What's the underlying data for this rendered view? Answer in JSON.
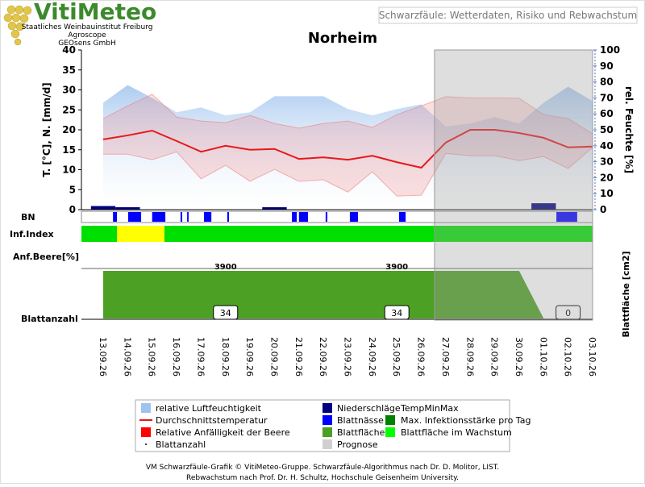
{
  "header": {
    "logo": "VitiMeteo",
    "institute": [
      "Staatliches Weinbauinstitut Freiburg",
      "Agroscope",
      "GEOsens GmbH"
    ],
    "subtitle": "Schwarzfäule: Wetterdaten, Risiko und Rebwachstum"
  },
  "chart_data": {
    "type": "line",
    "title": "Norheim",
    "categories": [
      "13.09.26",
      "14.09.26",
      "15.09.26",
      "16.09.26",
      "17.09.26",
      "18.09.26",
      "19.09.26",
      "20.09.26",
      "21.09.26",
      "22.09.26",
      "23.09.26",
      "24.09.26",
      "25.09.26",
      "26.09.26",
      "27.09.26",
      "28.09.26",
      "29.09.26",
      "30.09.26",
      "01.10.26",
      "02.10.26",
      "03.10.26"
    ],
    "xlim": [
      -0.89,
      20
    ],
    "ylabel": "T. [°C], N. [mm/d]",
    "ylim": [
      0,
      40
    ],
    "yticks": [
      0,
      5,
      10,
      15,
      20,
      25,
      30,
      35,
      40
    ],
    "y2label": "rel. Feuchte [%]",
    "y2lim": [
      0,
      100
    ],
    "y2ticks": [
      0,
      10,
      20,
      30,
      40,
      50,
      60,
      70,
      80,
      90,
      100
    ],
    "series": [
      {
        "name": "relative Luftfeuchtigkeit",
        "type": "area",
        "axis": "y2",
        "color": "#9fc3ee",
        "values": [
          67,
          78,
          70,
          61,
          64,
          59,
          61,
          71,
          71,
          71,
          63,
          59,
          63,
          66,
          52,
          54,
          58,
          54,
          67,
          77,
          68
        ]
      },
      {
        "name": "TempMinMax",
        "type": "band",
        "color": "#f08080",
        "values": [
          22.8,
          26,
          28.9,
          23.2,
          22.2,
          21.8,
          23.6,
          21.6,
          20.4,
          21.6,
          22.2,
          20.6,
          23.8,
          26,
          28.3,
          28,
          28,
          27.9,
          23.8,
          22.8,
          19
        ],
        "values_min": [
          13.9,
          13.9,
          12.5,
          14.5,
          7.7,
          11.1,
          7.1,
          10.1,
          7.1,
          7.5,
          4.4,
          9.5,
          3.4,
          3.6,
          14.1,
          13.5,
          13.5,
          12.3,
          13.3,
          10.3,
          15.6
        ]
      },
      {
        "name": "Durchschnittstemperatur",
        "type": "line",
        "color": "#e81818",
        "values": [
          17.6,
          18.6,
          19.8,
          17.2,
          14.5,
          16,
          15,
          15.2,
          12.7,
          13.1,
          12.5,
          13.5,
          11.9,
          10.5,
          16.8,
          20,
          20,
          19.2,
          18,
          15.6,
          15.8
        ]
      },
      {
        "name": "Niederschläge",
        "type": "bar",
        "color": "#000080",
        "values": [
          0.9,
          0.6,
          0,
          0,
          0,
          0,
          0,
          0.6,
          0,
          0,
          0,
          0,
          0,
          0,
          0,
          0,
          0,
          0,
          1.6,
          0,
          0
        ]
      }
    ],
    "leaf_wetness": {
      "label": "BN",
      "color": "#0000ff",
      "periods": [
        [
          0.4,
          0.56
        ],
        [
          1.02,
          1.55
        ],
        [
          2.0,
          2.54
        ],
        [
          3.16,
          3.23
        ],
        [
          3.43,
          3.49
        ],
        [
          4.12,
          4.42
        ],
        [
          5.07,
          5.14
        ],
        [
          7.71,
          7.91
        ],
        [
          8.0,
          8.37
        ],
        [
          9.09,
          9.16
        ],
        [
          10.08,
          10.41
        ],
        [
          12.09,
          12.36
        ],
        [
          18.52,
          19.37
        ]
      ]
    },
    "infection_index": {
      "label": "Inf.Index",
      "segments": [
        {
          "start": -0.89,
          "end": 0.56,
          "color": "#00e000"
        },
        {
          "start": 0.56,
          "end": 2.5,
          "color": "#ffff00"
        },
        {
          "start": 2.5,
          "end": 20,
          "color": "#00e000"
        }
      ]
    },
    "berry": {
      "label": "Anf.Beere[%]"
    },
    "leaf_area": {
      "label": "Blattfläche [cm2]",
      "color": "#4ca023",
      "ylim": [
        0,
        3900
      ],
      "values": [
        3900,
        3900,
        3900,
        3900,
        3900,
        3900,
        3900,
        3900,
        3900,
        3900,
        3900,
        3900,
        3900,
        3900,
        3900,
        3900,
        3900,
        3900,
        0,
        0,
        0
      ]
    },
    "leaf_count": {
      "label": "Blattanzahl",
      "values": [
        null,
        null,
        null,
        null,
        null,
        34,
        null,
        null,
        null,
        null,
        null,
        null,
        34,
        null,
        null,
        null,
        null,
        null,
        null,
        0,
        null
      ]
    },
    "forecast": {
      "start": 13.54,
      "color": "#a0a0a0"
    },
    "legend": [
      {
        "name": "relative Luftfeuchtigkeit",
        "symbol": "area",
        "color": "#9fc3ee"
      },
      {
        "name": "Niederschläge",
        "symbol": "square",
        "color": "#000080"
      },
      {
        "name": "TempMinMax",
        "symbol": "none",
        "color": "#f08080"
      },
      {
        "name": "Durchschnittstemperatur",
        "symbol": "line",
        "color": "#e81818"
      },
      {
        "name": "Blattnässe",
        "symbol": "square",
        "color": "#0000ff"
      },
      {
        "name": "Max. Infektionsstärke pro Tag",
        "symbol": "square",
        "color": "#008000"
      },
      {
        "name": "Relative Anfälligkeit der Beere",
        "symbol": "square",
        "color": "#ff0000"
      },
      {
        "name": "Blattfläche",
        "symbol": "square",
        "color": "#4ca023"
      },
      {
        "name": "Blattfläche im Wachstum",
        "symbol": "square",
        "color": "#00ff00"
      },
      {
        "name": "Blattanzahl",
        "symbol": "dot",
        "color": "#000000"
      },
      {
        "name": "Prognose",
        "symbol": "square",
        "color": "#d0d0d0"
      }
    ]
  },
  "footer": [
    "VM Schwarzfäule-Grafik © VitiMeteo-Gruppe. Schwarzfäule-Algorithmus nach Dr. D. Molitor, LIST.",
    "Rebwachstum nach Prof. Dr. H. Schultz, Hochschule Geisenheim University."
  ]
}
